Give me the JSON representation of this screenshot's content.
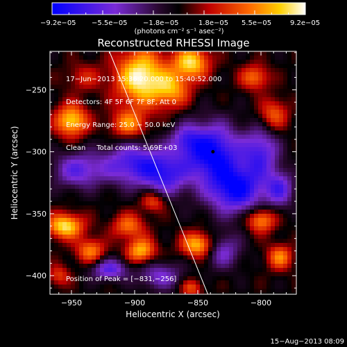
{
  "chart_data": {
    "type": "heatmap",
    "title": "Reconstructed RHESSI Image",
    "xlabel": "Heliocentric X (arcsec)",
    "ylabel": "Heliocentric Y (arcsec)",
    "xlim": [
      -967,
      -772
    ],
    "ylim": [
      -415,
      -219
    ],
    "xticks": [
      -950,
      -900,
      -850,
      -800
    ],
    "yticks": [
      -250,
      -300,
      -350,
      -400
    ],
    "xtick_labels": [
      "−950",
      "−900",
      "−850",
      "−800"
    ],
    "ytick_labels": [
      "−250",
      "−300",
      "−350",
      "−400"
    ],
    "colorbar": {
      "min": -9.2e-05,
      "max": 9.2e-05,
      "tick_labels": [
        "−9.2e−05",
        "−5.5e−05",
        "−1.8e−05",
        "1.8e−05",
        "5.5e−05",
        "9.2e−05"
      ],
      "unit_label": "(photons cm⁻² s⁻¹ asec⁻²)"
    },
    "annotations": [
      "17−Jun−2013 15:36:20.000 to 15:40:52.000",
      "Detectors: 4F 5F 6F 7F 8F, Att 0",
      "Energy Range: 25.0 − 50.0 keV",
      "Clean     Total counts: 5.69E+03"
    ],
    "peak_label": "Position of Peak = [−831,−256]",
    "limb_line": {
      "x": [
        -920,
        -842
      ],
      "y": [
        -219,
        -415
      ]
    },
    "marker": {
      "x": -838,
      "y": -300
    },
    "sources": [
      {
        "x": -895,
        "y": -240,
        "sx": 14,
        "sy": 16,
        "a": 1.0
      },
      {
        "x": -855,
        "y": -228,
        "sx": 10,
        "sy": 9,
        "a": 0.85
      },
      {
        "x": -870,
        "y": -250,
        "sx": 10,
        "sy": 10,
        "a": 0.6
      },
      {
        "x": -950,
        "y": -275,
        "sx": 9,
        "sy": 9,
        "a": 0.85
      },
      {
        "x": -905,
        "y": -278,
        "sx": 10,
        "sy": 8,
        "a": 0.6
      },
      {
        "x": -940,
        "y": -240,
        "sx": 10,
        "sy": 8,
        "a": 0.3
      },
      {
        "x": -805,
        "y": -240,
        "sx": 8,
        "sy": 7,
        "a": 0.55
      },
      {
        "x": -790,
        "y": -270,
        "sx": 8,
        "sy": 9,
        "a": 0.5
      },
      {
        "x": -955,
        "y": -360,
        "sx": 10,
        "sy": 7,
        "a": 0.9
      },
      {
        "x": -935,
        "y": -380,
        "sx": 8,
        "sy": 7,
        "a": 0.6
      },
      {
        "x": -905,
        "y": -360,
        "sx": 9,
        "sy": 7,
        "a": 0.55
      },
      {
        "x": -895,
        "y": -380,
        "sx": 8,
        "sy": 7,
        "a": 0.75
      },
      {
        "x": -885,
        "y": -340,
        "sx": 7,
        "sy": 6,
        "a": 0.5
      },
      {
        "x": -850,
        "y": -375,
        "sx": 9,
        "sy": 7,
        "a": 0.8
      },
      {
        "x": -800,
        "y": -355,
        "sx": 8,
        "sy": 7,
        "a": 0.7
      },
      {
        "x": -785,
        "y": -385,
        "sx": 7,
        "sy": 7,
        "a": 0.6
      },
      {
        "x": -960,
        "y": -400,
        "sx": 6,
        "sy": 6,
        "a": 0.4
      },
      {
        "x": -855,
        "y": -410,
        "sx": 6,
        "sy": 5,
        "a": 0.45
      },
      {
        "x": -840,
        "y": -300,
        "sx": 16,
        "sy": 16,
        "a": -1.0
      },
      {
        "x": -820,
        "y": -330,
        "sx": 16,
        "sy": 14,
        "a": -0.95
      },
      {
        "x": -900,
        "y": -310,
        "sx": 18,
        "sy": 12,
        "a": -0.75
      },
      {
        "x": -875,
        "y": -320,
        "sx": 12,
        "sy": 12,
        "a": -0.6
      },
      {
        "x": -945,
        "y": -315,
        "sx": 14,
        "sy": 10,
        "a": -0.6
      },
      {
        "x": -920,
        "y": -395,
        "sx": 10,
        "sy": 6,
        "a": -0.65
      },
      {
        "x": -800,
        "y": -300,
        "sx": 10,
        "sy": 14,
        "a": -0.65
      },
      {
        "x": -830,
        "y": -380,
        "sx": 10,
        "sy": 10,
        "a": -0.5
      },
      {
        "x": -785,
        "y": -330,
        "sx": 8,
        "sy": 10,
        "a": -0.6
      },
      {
        "x": -880,
        "y": -400,
        "sx": 12,
        "sy": 8,
        "a": -0.5
      },
      {
        "x": -860,
        "y": -290,
        "sx": 8,
        "sy": 8,
        "a": -0.4
      }
    ]
  },
  "footer_date": "15−Aug−2013 08:09"
}
